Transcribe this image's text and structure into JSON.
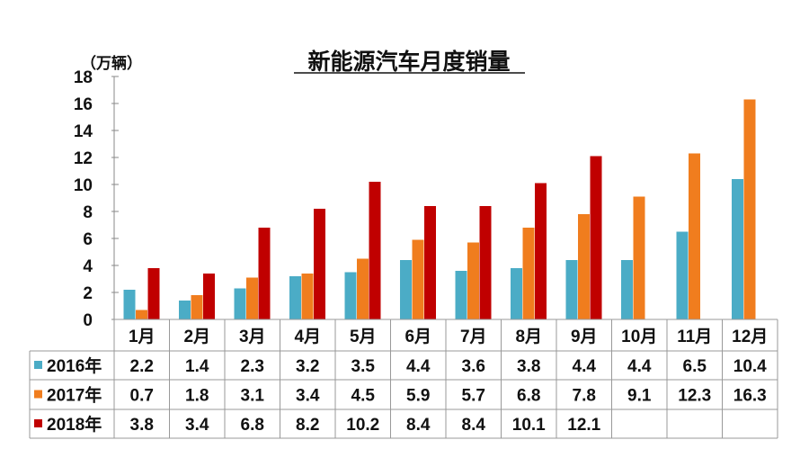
{
  "chart_data": {
    "type": "bar",
    "title": "新能源汽车月度销量",
    "ylabel": "（万辆）",
    "xlabel": "",
    "ylim": [
      0,
      18
    ],
    "yticks": [
      "0",
      "2",
      "4",
      "6",
      "8",
      "10",
      "12",
      "14",
      "16",
      "18"
    ],
    "grid": false,
    "legend_placement": "data-table",
    "categories": [
      "1月",
      "2月",
      "3月",
      "4月",
      "5月",
      "6月",
      "7月",
      "8月",
      "9月",
      "10月",
      "11月",
      "12月"
    ],
    "series": [
      {
        "name": "2016年",
        "color": "#4BACC6",
        "values": [
          2.2,
          1.4,
          2.3,
          3.2,
          3.5,
          4.4,
          3.6,
          3.8,
          4.4,
          4.4,
          6.5,
          10.4
        ]
      },
      {
        "name": "2017年",
        "color": "#F07D1E",
        "values": [
          0.7,
          1.8,
          3.1,
          3.4,
          4.5,
          5.9,
          5.7,
          6.8,
          7.8,
          9.1,
          12.3,
          16.3
        ]
      },
      {
        "name": "2018年",
        "color": "#C00000",
        "values": [
          3.8,
          3.4,
          6.8,
          8.2,
          10.2,
          8.4,
          8.4,
          10.1,
          12.1,
          null,
          null,
          null
        ]
      }
    ],
    "table_labels": [
      [
        "2.2",
        "1.4",
        "2.3",
        "3.2",
        "3.5",
        "4.4",
        "3.6",
        "3.8",
        "4.4",
        "4.4",
        "6.5",
        "10.4"
      ],
      [
        "0.7",
        "1.8",
        "3.1",
        "3.4",
        "4.5",
        "5.9",
        "5.7",
        "6.8",
        "7.8",
        "9.1",
        "12.3",
        "16.3"
      ],
      [
        "3.8",
        "3.4",
        "6.8",
        "8.2",
        "10.2",
        "8.4",
        "8.4",
        "10.1",
        "12.1",
        "",
        "",
        ""
      ]
    ]
  }
}
